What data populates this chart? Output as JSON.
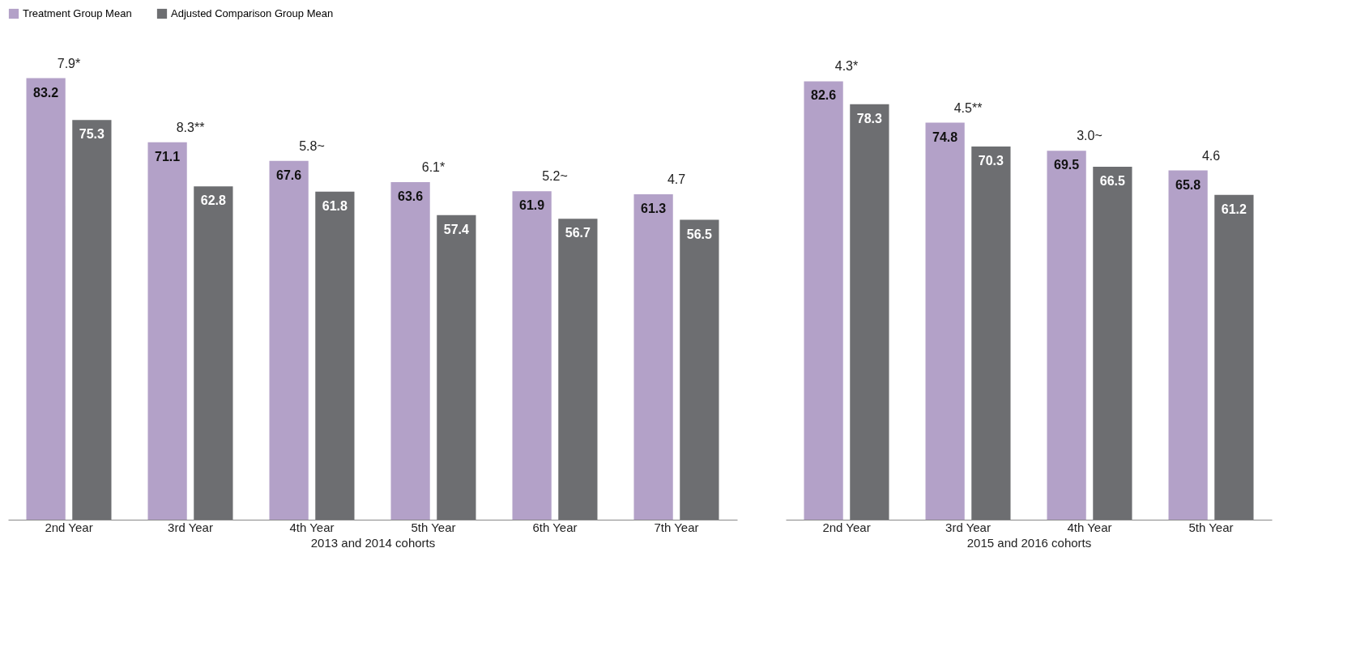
{
  "chart_data": [
    {
      "type": "bar",
      "xlabel": "2013 and 2014 cohorts",
      "categories": [
        "2nd Year",
        "3rd Year",
        "4th Year",
        "5th Year",
        "6th Year",
        "7th Year"
      ],
      "series": [
        {
          "name": "Treatment Group Mean",
          "color": "#b3a1c8",
          "values": [
            83.2,
            71.1,
            67.6,
            63.6,
            61.9,
            61.3
          ]
        },
        {
          "name": "Adjusted Comparison Group Mean",
          "color": "#6d6e71",
          "values": [
            75.3,
            62.8,
            61.8,
            57.4,
            56.7,
            56.5
          ]
        }
      ],
      "data_labels": true,
      "legend": "top left",
      "grid": false,
      "annotations": [
        {
          "text": "7.9*",
          "x": "2nd Year",
          "y": 83.2
        },
        {
          "text": "8.3**",
          "x": "3rd Year",
          "y": 71.1
        },
        {
          "text": "5.8~",
          "x": "4th Year",
          "y": 67.6
        },
        {
          "text": "6.1*",
          "x": "5th Year",
          "y": 63.6
        },
        {
          "text": "5.2~",
          "x": "6th Year",
          "y": 61.9
        },
        {
          "text": "4.7",
          "x": "7th Year",
          "y": 61.3
        }
      ]
    },
    {
      "type": "bar",
      "xlabel": "2015 and 2016 cohorts",
      "categories": [
        "2nd Year",
        "3rd Year",
        "4th Year",
        "5th Year"
      ],
      "series": [
        {
          "name": "Treatment Group Mean",
          "color": "#b3a1c8",
          "values": [
            82.6,
            74.8,
            69.5,
            65.8
          ]
        },
        {
          "name": "Adjusted Comparison Group Mean",
          "color": "#6d6e71",
          "values": [
            78.3,
            70.3,
            66.5,
            61.2
          ]
        }
      ],
      "data_labels": true,
      "grid": false,
      "annotations": [
        {
          "text": "4.3*",
          "x": "2nd Year",
          "y": 82.6
        },
        {
          "text": "4.5**",
          "x": "3rd Year",
          "y": 74.8
        },
        {
          "text": "3.0~",
          "x": "4th Year",
          "y": 69.5
        },
        {
          "text": "4.6",
          "x": "5th Year",
          "y": 65.8
        }
      ]
    }
  ]
}
